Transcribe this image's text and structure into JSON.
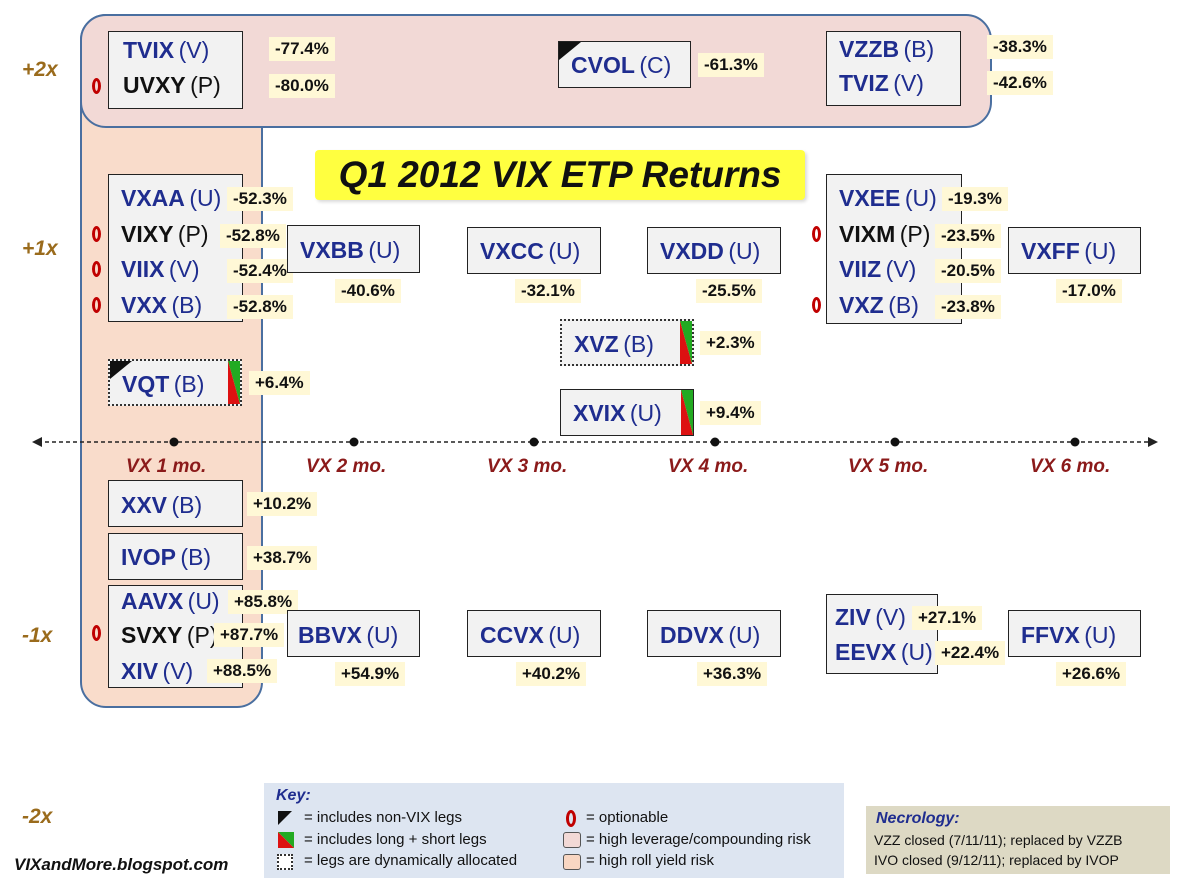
{
  "title": "Q1 2012 VIX ETP Returns",
  "footer": "VIXandMore.blogspot.com",
  "leverage_labels": {
    "p2": "+2x",
    "p1": "+1x",
    "m1": "-1x",
    "m2": "-2x"
  },
  "axis_labels": [
    "VX 1 mo.",
    "VX 2 mo.",
    "VX 3 mo.",
    "VX 4 mo.",
    "VX 5 mo.",
    "VX 6 mo."
  ],
  "products": {
    "tvix": {
      "ticker": "TVIX",
      "cls": "(V)",
      "ret": "-77.4%"
    },
    "uvxy": {
      "ticker": "UVXY",
      "cls": "(P)",
      "ret": "-80.0%"
    },
    "cvol": {
      "ticker": "CVOL",
      "cls": "(C)",
      "ret": "-61.3%"
    },
    "vzzb": {
      "ticker": "VZZB",
      "cls": "(B)",
      "ret": "-38.3%"
    },
    "tviz": {
      "ticker": "TVIZ",
      "cls": "(V)",
      "ret": "-42.6%"
    },
    "vxaa": {
      "ticker": "VXAA",
      "cls": "(U)",
      "ret": "-52.3%"
    },
    "vixy": {
      "ticker": "VIXY",
      "cls": "(P)",
      "ret": "-52.8%"
    },
    "viix": {
      "ticker": "VIIX",
      "cls": "(V)",
      "ret": "-52.4%"
    },
    "vxx": {
      "ticker": "VXX",
      "cls": "(B)",
      "ret": "-52.8%"
    },
    "vxbb": {
      "ticker": "VXBB",
      "cls": "(U)",
      "ret": "-40.6%"
    },
    "vxcc": {
      "ticker": "VXCC",
      "cls": "(U)",
      "ret": "-32.1%"
    },
    "vxdd": {
      "ticker": "VXDD",
      "cls": "(U)",
      "ret": "-25.5%"
    },
    "vxee": {
      "ticker": "VXEE",
      "cls": "(U)",
      "ret": "-19.3%"
    },
    "vixm": {
      "ticker": "VIXM",
      "cls": "(P)",
      "ret": "-23.5%"
    },
    "viiz": {
      "ticker": "VIIZ",
      "cls": "(V)",
      "ret": "-20.5%"
    },
    "vxz": {
      "ticker": "VXZ",
      "cls": "(B)",
      "ret": "-23.8%"
    },
    "vxff": {
      "ticker": "VXFF",
      "cls": "(U)",
      "ret": "-17.0%"
    },
    "xvz": {
      "ticker": "XVZ",
      "cls": "(B)",
      "ret": "+2.3%"
    },
    "vqt": {
      "ticker": "VQT",
      "cls": "(B)",
      "ret": "+6.4%"
    },
    "xvix": {
      "ticker": "XVIX",
      "cls": "(U)",
      "ret": "+9.4%"
    },
    "xxv": {
      "ticker": "XXV",
      "cls": "(B)",
      "ret": "+10.2%"
    },
    "ivop": {
      "ticker": "IVOP",
      "cls": "(B)",
      "ret": "+38.7%"
    },
    "aavx": {
      "ticker": "AAVX",
      "cls": "(U)",
      "ret": "+85.8%"
    },
    "svxy": {
      "ticker": "SVXY",
      "cls": "(P)",
      "ret": "+87.7%"
    },
    "xiv": {
      "ticker": "XIV",
      "cls": "(V)",
      "ret": "+88.5%"
    },
    "bbvx": {
      "ticker": "BBVX",
      "cls": "(U)",
      "ret": "+54.9%"
    },
    "ccvx": {
      "ticker": "CCVX",
      "cls": "(U)",
      "ret": "+40.2%"
    },
    "ddvx": {
      "ticker": "DDVX",
      "cls": "(U)",
      "ret": "+36.3%"
    },
    "ziv": {
      "ticker": "ZIV",
      "cls": "(V)",
      "ret": "+27.1%"
    },
    "eevx": {
      "ticker": "EEVX",
      "cls": "(U)",
      "ret": "+22.4%"
    },
    "ffvx": {
      "ticker": "FFVX",
      "cls": "(U)",
      "ret": "+26.6%"
    }
  },
  "key": {
    "title": "Key:",
    "non_vix": "= includes non-VIX legs",
    "long_short": "= includes long + short  legs",
    "dynamic": "= legs are dynamically allocated",
    "optionable": "= optionable",
    "leverage_risk": "= high leverage/compounding risk",
    "roll_risk": "= high roll yield risk"
  },
  "necrology": {
    "title": "Necrology:",
    "lines": [
      "VZZ closed (7/11/11); replaced by VZZB",
      "IVO closed (9/12/11); replaced by IVOP"
    ]
  },
  "colors": {
    "ticker_blue": "#1f2d8f",
    "leverage_gold": "#9a6b1c",
    "axis_red": "#8b1a1a",
    "title_yellow": "#ffff40",
    "optionable_red": "#c00000",
    "leverage_region": "#f2d9d6",
    "roll_region": "#f8d6c2"
  }
}
